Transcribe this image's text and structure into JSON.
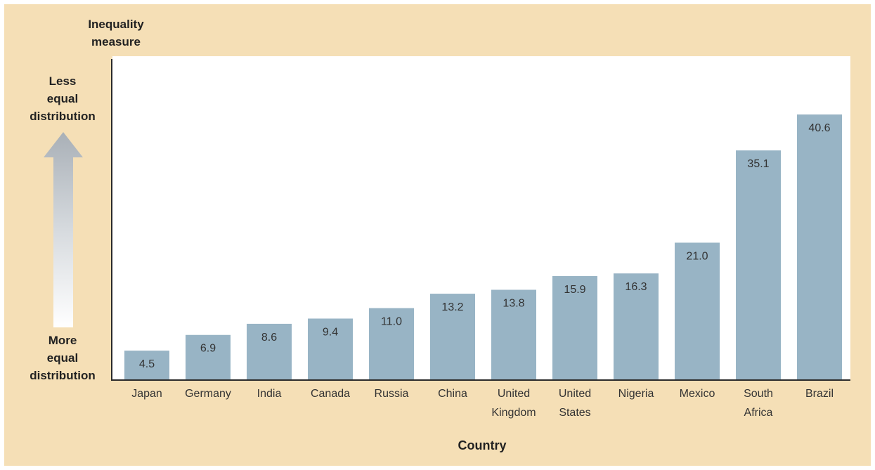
{
  "chart_data": {
    "type": "bar",
    "ylabel_lines": [
      "Inequality",
      "measure"
    ],
    "xlabel": "Country",
    "top_annotation_lines": [
      "Less",
      "equal",
      "distribution"
    ],
    "bottom_annotation_lines": [
      "More",
      "equal",
      "distribution"
    ],
    "categories": [
      [
        "Japan"
      ],
      [
        "Germany"
      ],
      [
        "India"
      ],
      [
        "Canada"
      ],
      [
        "Russia"
      ],
      [
        "China"
      ],
      [
        "United",
        "Kingdom"
      ],
      [
        "United",
        "States"
      ],
      [
        "Nigeria"
      ],
      [
        "Mexico"
      ],
      [
        "South",
        "Africa"
      ],
      [
        "Brazil"
      ]
    ],
    "values": [
      4.5,
      6.9,
      8.6,
      9.4,
      11.0,
      13.2,
      13.8,
      15.9,
      16.3,
      21.0,
      35.1,
      40.6
    ],
    "value_labels": [
      "4.5",
      "6.9",
      "8.6",
      "9.4",
      "11.0",
      "13.2",
      "13.8",
      "15.9",
      "16.3",
      "21.0",
      "35.1",
      "40.6"
    ],
    "ylim": [
      0,
      49.5
    ],
    "grid": false,
    "legend": "none",
    "bar_color": "#98b4c5",
    "background_color": "#f5dfb6"
  }
}
